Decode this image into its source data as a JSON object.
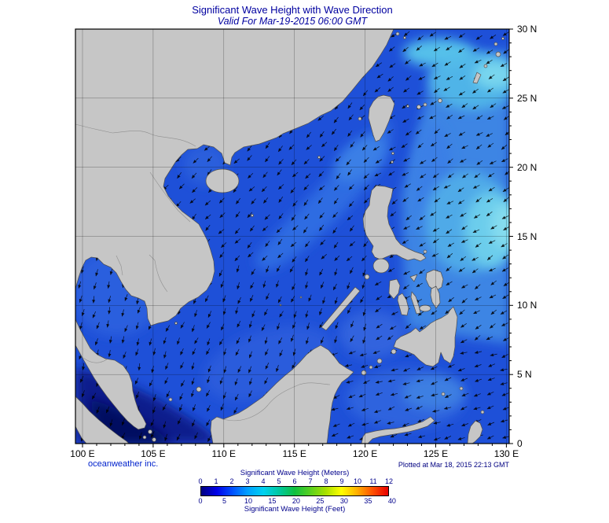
{
  "header": {
    "title": "Significant Wave Height with Wave Direction",
    "subtitle": "Valid For Mar-19-2015 06:00 GMT"
  },
  "map": {
    "lon_min": 99.5,
    "lon_max": 130.2,
    "lat_min": 0,
    "lat_max": 30,
    "x_ticks": [
      {
        "label": "100 E",
        "lon": 100
      },
      {
        "label": "105 E",
        "lon": 105
      },
      {
        "label": "110 E",
        "lon": 110
      },
      {
        "label": "115 E",
        "lon": 115
      },
      {
        "label": "120 E",
        "lon": 120
      },
      {
        "label": "125 E",
        "lon": 125
      },
      {
        "label": "130 E",
        "lon": 130
      }
    ],
    "y_ticks": [
      {
        "label": "0",
        "lat": 0
      },
      {
        "label": "5 N",
        "lat": 5
      },
      {
        "label": "10 N",
        "lat": 10
      },
      {
        "label": "15 N",
        "lat": 15
      },
      {
        "label": "20 N",
        "lat": 20
      },
      {
        "label": "25 N",
        "lat": 25
      },
      {
        "label": "30 N",
        "lat": 30
      }
    ]
  },
  "arrows": {
    "spacing_deg": 1,
    "regions": [
      {
        "name": "celebes-sulu",
        "lon": [
          116,
          130.2
        ],
        "lat": [
          0,
          6.5
        ],
        "dir": 250
      },
      {
        "name": "philippine-sea",
        "lon": [
          120.5,
          130.2
        ],
        "lat": [
          6.5,
          30
        ],
        "dir": 237
      },
      {
        "name": "gulf-of-thailand",
        "lon": [
          99.5,
          105.5
        ],
        "lat": [
          5,
          14
        ],
        "dir": 195
      },
      {
        "name": "southern-south-china-sea",
        "lon": [
          99.5,
          120.5
        ],
        "lat": [
          0,
          13
        ],
        "dir": 203
      },
      {
        "name": "northern-south-china-sea",
        "lon": [
          105,
          120.5
        ],
        "lat": [
          13,
          30
        ],
        "dir": 222
      },
      {
        "name": "default",
        "lon": [
          99.5,
          130.2
        ],
        "lat": [
          0,
          30
        ],
        "dir": 230
      }
    ]
  },
  "legend": {
    "meters_label": "Significant Wave Height (Meters)",
    "feet_label": "Significant Wave Height (Feet)",
    "meters_ticks": [
      0,
      1,
      2,
      3,
      4,
      5,
      6,
      7,
      8,
      9,
      10,
      11,
      12
    ],
    "feet_ticks": [
      0,
      5,
      10,
      15,
      20,
      25,
      30,
      35,
      40
    ],
    "gradient_colors": [
      "#000080",
      "#0000E8",
      "#0050FF",
      "#00A0FF",
      "#00D0F0",
      "#00C8A0",
      "#10C040",
      "#58D020",
      "#A8E000",
      "#FFFF00",
      "#FFB000",
      "#FF5000",
      "#E80000"
    ]
  },
  "footer": {
    "credit": "oceanweather inc.",
    "plotted": "Plotted at Mar 18, 2015 22:13 GMT"
  },
  "colors": {
    "title_text": "#0000A0",
    "legend_text": "#00008B",
    "land": "#C6C6C6",
    "ocean_base": "#1E50D8"
  }
}
